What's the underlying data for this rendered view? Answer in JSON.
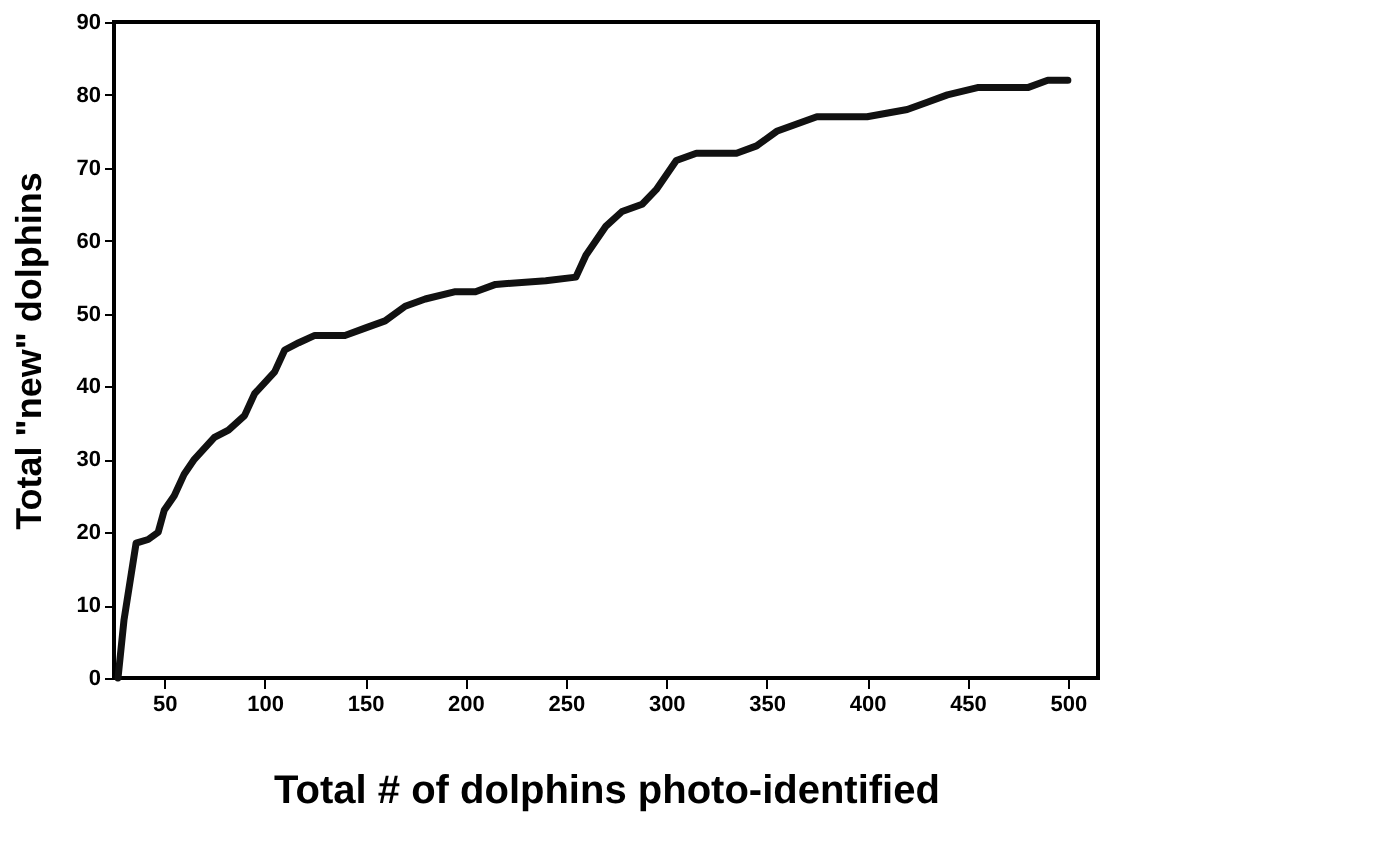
{
  "chart_data": {
    "type": "line",
    "xlabel": "Total # of dolphins photo-identified",
    "ylabel": "Total \"new\" dolphins",
    "x": [
      27,
      30,
      36,
      42,
      47,
      50,
      55,
      60,
      65,
      75,
      82,
      90,
      95,
      105,
      110,
      117,
      125,
      140,
      150,
      160,
      170,
      180,
      195,
      205,
      215,
      240,
      255,
      260,
      270,
      278,
      288,
      295,
      305,
      315,
      335,
      345,
      355,
      365,
      375,
      400,
      420,
      430,
      440,
      455,
      480,
      490,
      500
    ],
    "series": [
      {
        "color": "#111111",
        "values": [
          0,
          8,
          18.5,
          19,
          20,
          23,
          25,
          28,
          30,
          33,
          34,
          36,
          39,
          42,
          45,
          46,
          47,
          47,
          48,
          49,
          51,
          52,
          53,
          53,
          54,
          54.5,
          55,
          58,
          62,
          64,
          65,
          67,
          71,
          72,
          72,
          73,
          75,
          76,
          77,
          77,
          78,
          79,
          80,
          81,
          81,
          82,
          82
        ]
      }
    ],
    "xlim": [
      25,
      515
    ],
    "ylim": [
      0,
      90
    ],
    "xticks": [
      50,
      100,
      150,
      200,
      250,
      300,
      350,
      400,
      450,
      500
    ],
    "yticks": [
      0,
      10,
      20,
      30,
      40,
      50,
      60,
      70,
      80,
      90
    ],
    "grid": false,
    "legend": false,
    "marker": "none",
    "line_style": "solid"
  }
}
